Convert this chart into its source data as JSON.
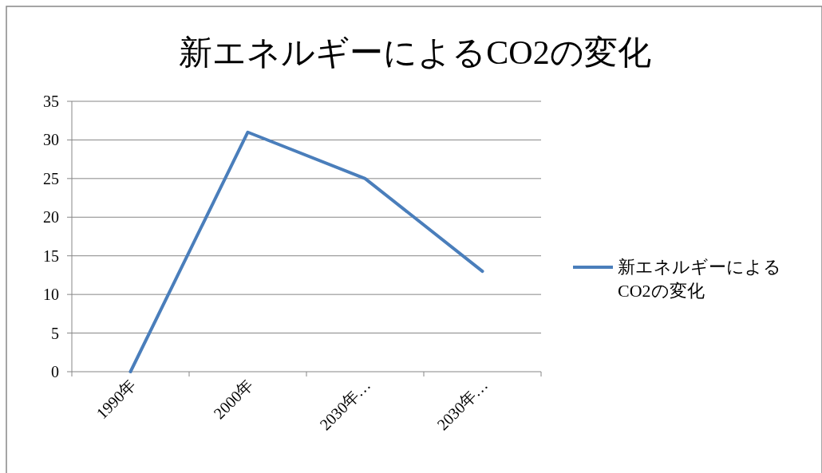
{
  "chart_data": {
    "type": "line",
    "title": "新エネルギーによるCO2の変化",
    "categories": [
      "1990年",
      "2000年",
      "2030年…",
      "2030年…"
    ],
    "series": [
      {
        "name": "新エネルギーによるCO2の変化",
        "color": "#4a7ebb",
        "values": [
          0,
          31,
          25,
          13
        ]
      }
    ],
    "ylim": [
      0,
      35
    ],
    "yticks": [
      0,
      5,
      10,
      15,
      20,
      25,
      30,
      35
    ],
    "grid": "y",
    "legend": "right",
    "marker": "none",
    "line_style": "solid"
  }
}
